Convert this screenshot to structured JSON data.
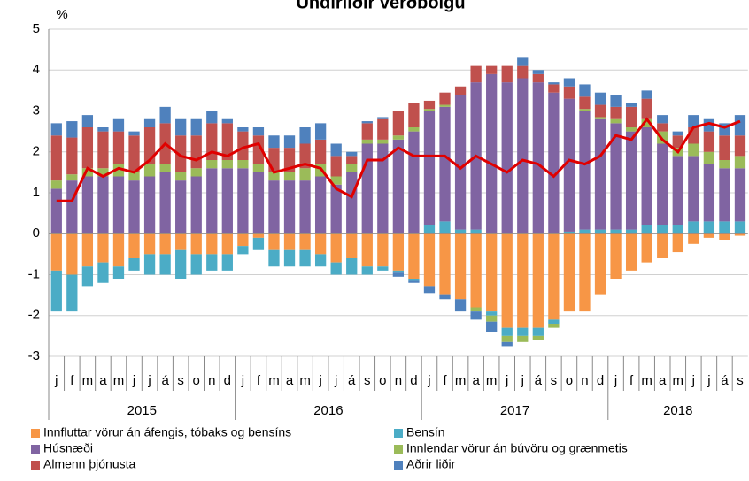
{
  "chart_data": {
    "type": "bar",
    "title": "Undirliðir verðbólgu",
    "y_label": "%",
    "categories": [
      "j",
      "f",
      "m",
      "a",
      "m",
      "j",
      "j",
      "á",
      "s",
      "o",
      "n",
      "d",
      "j",
      "f",
      "m",
      "a",
      "m",
      "j",
      "j",
      "á",
      "s",
      "o",
      "n",
      "d",
      "j",
      "f",
      "m",
      "a",
      "m",
      "j",
      "j",
      "á",
      "s",
      "o",
      "n",
      "d",
      "j",
      "f",
      "m",
      "a",
      "m",
      "j",
      "j",
      "á",
      "s"
    ],
    "years": [
      "2015",
      "2016",
      "2017",
      "2018"
    ],
    "series": [
      {
        "name": "Innfluttar vörur án áfengis, tóbaks og bensíns",
        "color": "#f79646",
        "values": [
          -0.9,
          -1.0,
          -0.8,
          -0.7,
          -0.8,
          -0.6,
          -0.5,
          -0.5,
          -0.4,
          -0.5,
          -0.5,
          -0.5,
          -0.3,
          -0.1,
          -0.4,
          -0.4,
          -0.4,
          -0.5,
          -0.7,
          -0.6,
          -0.8,
          -0.8,
          -0.9,
          -1.1,
          -1.3,
          -1.5,
          -1.6,
          -1.8,
          -1.9,
          -2.3,
          -2.3,
          -2.3,
          -2.1,
          -1.9,
          -1.9,
          -1.5,
          -1.1,
          -0.9,
          -0.7,
          -0.6,
          -0.45,
          -0.25,
          -0.1,
          -0.15,
          -0.05
        ]
      },
      {
        "name": "Bensín",
        "color": "#4bacc6",
        "values": [
          -1.0,
          -0.9,
          -0.5,
          -0.5,
          -0.3,
          -0.3,
          -0.5,
          -0.5,
          -0.7,
          -0.5,
          -0.4,
          -0.4,
          -0.2,
          -0.3,
          -0.4,
          -0.4,
          -0.4,
          -0.3,
          -0.3,
          -0.4,
          -0.2,
          -0.1,
          -0.05,
          -0.05,
          0.2,
          0.3,
          0.1,
          0.1,
          -0.1,
          -0.2,
          -0.2,
          -0.2,
          -0.1,
          0.05,
          0.1,
          0.1,
          0.1,
          0.1,
          0.2,
          0.2,
          0.2,
          0.3,
          0.3,
          0.3,
          0.3
        ]
      },
      {
        "name": "Húsnæði",
        "color": "#8064a2",
        "values": [
          1.1,
          1.3,
          1.4,
          1.4,
          1.4,
          1.3,
          1.4,
          1.5,
          1.3,
          1.4,
          1.6,
          1.6,
          1.6,
          1.5,
          1.3,
          1.3,
          1.3,
          1.4,
          1.2,
          1.5,
          2.2,
          2.2,
          2.3,
          2.5,
          2.8,
          2.8,
          3.3,
          3.6,
          3.9,
          3.7,
          3.8,
          3.7,
          3.45,
          3.25,
          2.9,
          2.7,
          2.6,
          2.4,
          2.4,
          2.0,
          1.7,
          1.6,
          1.4,
          1.3,
          1.3
        ]
      },
      {
        "name": "Innlendar vörur án búvöru og grænmetis",
        "color": "#9bbb59",
        "values": [
          0.2,
          0.15,
          0.2,
          0.2,
          0.3,
          0.2,
          0.3,
          0.2,
          0.2,
          0.2,
          0.2,
          0.2,
          0.2,
          0.2,
          0.2,
          0.2,
          0.3,
          0.3,
          0.2,
          0.2,
          0.1,
          0.1,
          0.1,
          0.1,
          0.05,
          0.05,
          0.0,
          -0.1,
          -0.15,
          -0.15,
          -0.15,
          -0.1,
          -0.1,
          0.0,
          0.05,
          0.05,
          0.1,
          0.1,
          0.2,
          0.3,
          0.2,
          0.3,
          0.3,
          0.2,
          0.3
        ]
      },
      {
        "name": "Almenn þjónusta",
        "color": "#c0504d",
        "values": [
          1.1,
          0.9,
          1.0,
          0.9,
          0.8,
          0.9,
          0.9,
          1.0,
          0.9,
          0.8,
          0.9,
          0.9,
          0.7,
          0.7,
          0.6,
          0.6,
          0.6,
          0.6,
          0.5,
          0.2,
          0.4,
          0.5,
          0.6,
          0.6,
          0.2,
          0.3,
          0.2,
          0.4,
          0.2,
          0.4,
          0.3,
          0.2,
          0.2,
          0.3,
          0.3,
          0.3,
          0.3,
          0.5,
          0.5,
          0.2,
          0.3,
          0.4,
          0.5,
          0.6,
          0.5
        ]
      },
      {
        "name": "Aðrir liðir",
        "color": "#4f81bd",
        "values": [
          0.3,
          0.4,
          0.3,
          0.1,
          0.3,
          0.1,
          0.2,
          0.4,
          0.4,
          0.4,
          0.3,
          0.1,
          0.1,
          0.2,
          0.3,
          0.3,
          0.4,
          0.4,
          0.3,
          0.1,
          0.05,
          0.05,
          -0.1,
          -0.05,
          -0.15,
          -0.1,
          -0.3,
          -0.2,
          -0.25,
          -0.1,
          0.2,
          0.1,
          0.05,
          0.2,
          0.3,
          0.3,
          0.3,
          0.1,
          0.2,
          0.2,
          0.1,
          0.3,
          0.3,
          0.3,
          0.5
        ]
      }
    ],
    "line": {
      "color": "#e00000",
      "values": [
        0.8,
        0.8,
        1.6,
        1.4,
        1.6,
        1.5,
        1.8,
        2.2,
        1.9,
        1.8,
        2.0,
        1.9,
        2.1,
        2.2,
        1.5,
        1.6,
        1.7,
        1.6,
        1.1,
        0.9,
        1.8,
        1.8,
        2.1,
        1.9,
        1.9,
        1.9,
        1.6,
        1.9,
        1.7,
        1.5,
        1.8,
        1.7,
        1.4,
        1.8,
        1.7,
        1.9,
        2.4,
        2.3,
        2.8,
        2.3,
        2.0,
        2.6,
        2.7,
        2.6,
        2.75
      ]
    },
    "ylim": [
      -3,
      5
    ],
    "yticks": [
      -3,
      -2,
      -1,
      0,
      1,
      2,
      3,
      4,
      5
    ],
    "grid": true
  }
}
